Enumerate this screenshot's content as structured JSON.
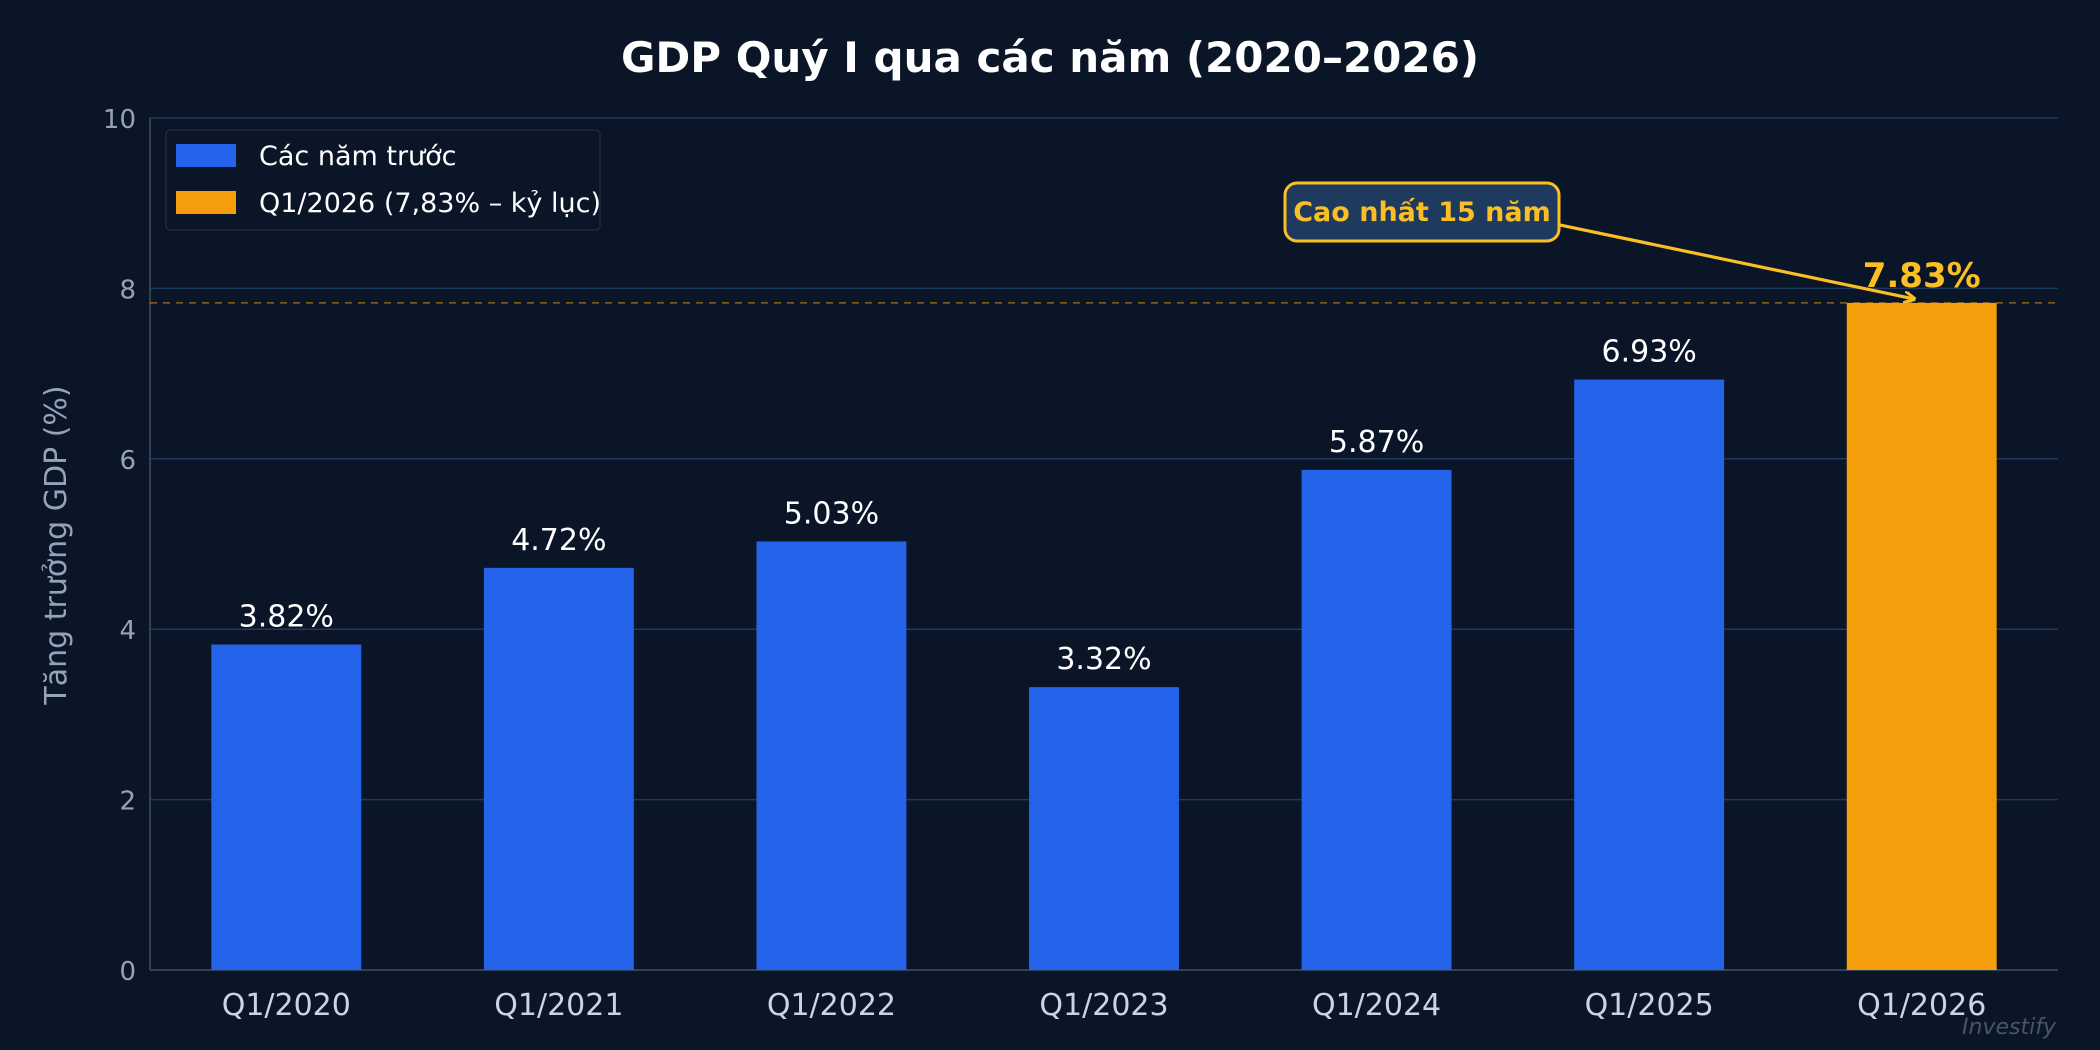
{
  "chart_data": {
    "type": "bar",
    "title": "GDP Quý I qua các năm (2020–2026)",
    "xlabel": "",
    "ylabel": "Tăng trưởng GDP (%)",
    "categories": [
      "Q1/2020",
      "Q1/2021",
      "Q1/2022",
      "Q1/2023",
      "Q1/2024",
      "Q1/2025",
      "Q1/2026"
    ],
    "values": [
      3.82,
      4.72,
      5.03,
      3.32,
      5.87,
      6.93,
      7.83
    ],
    "data_labels": [
      "3.82%",
      "4.72%",
      "5.03%",
      "3.32%",
      "5.87%",
      "6.93%",
      "7.83%"
    ],
    "highlight_index": 6,
    "ylim": [
      0,
      10
    ],
    "yticks": [
      0,
      2,
      4,
      6,
      8,
      10
    ],
    "ytick_labels": [
      "0",
      "2",
      "4",
      "6",
      "8",
      "10"
    ],
    "grid": true,
    "reference_line": 7.83,
    "legend": {
      "placement": "top-left",
      "entries": [
        {
          "label": "Các năm trước",
          "color": "#2563eb"
        },
        {
          "label": "Q1/2026 (7,83% – kỷ lục)",
          "color": "#f59e0b"
        }
      ]
    },
    "annotation": {
      "text": "Cao nhất 15 năm",
      "target_index": 6
    },
    "colors": {
      "background": "#0a1628",
      "bar": "#2563eb",
      "highlight": "#f59e0b",
      "annotation": "#fbbf24",
      "grid": "#1e3a5f",
      "text": "#ffffff",
      "axis_text": "#94a3b8"
    }
  },
  "watermark": "Investify"
}
